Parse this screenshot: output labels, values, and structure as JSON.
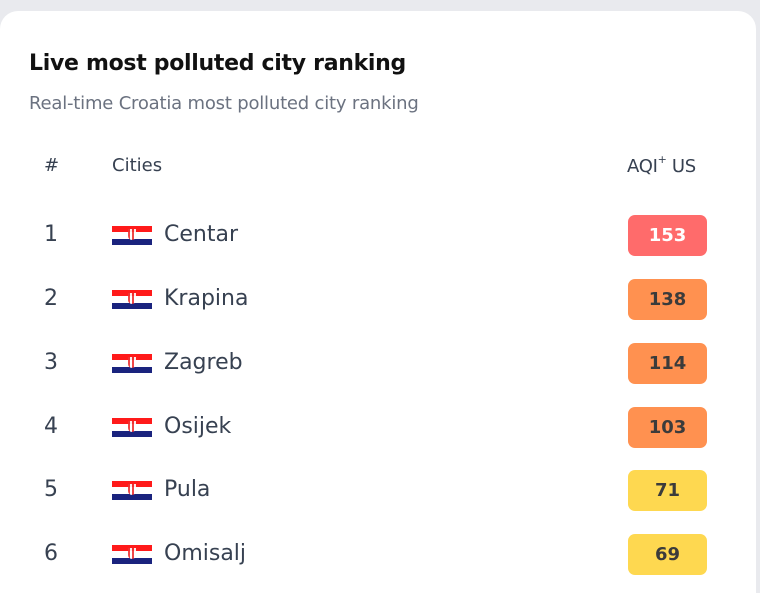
{
  "card": {
    "title": "Live most polluted city ranking",
    "subtitle": "Real-time Croatia most polluted city ranking"
  },
  "table": {
    "headers": {
      "rank": "#",
      "city": "Cities",
      "aqi": "AQI",
      "aqi_sup": "+",
      "aqi_suffix": " US"
    },
    "rows": [
      {
        "rank": "1",
        "flag": "croatia-flag-icon",
        "city": "Centar",
        "aqi": "153",
        "color": "#ff6b6b",
        "text_color": "#ffffff"
      },
      {
        "rank": "2",
        "flag": "croatia-flag-icon",
        "city": "Krapina",
        "aqi": "138",
        "color": "#ff9150",
        "text_color": "#3b3b3b"
      },
      {
        "rank": "3",
        "flag": "croatia-flag-icon",
        "city": "Zagreb",
        "aqi": "114",
        "color": "#ff9150",
        "text_color": "#3b3b3b"
      },
      {
        "rank": "4",
        "flag": "croatia-flag-icon",
        "city": "Osijek",
        "aqi": "103",
        "color": "#ff9150",
        "text_color": "#3b3b3b"
      },
      {
        "rank": "5",
        "flag": "croatia-flag-icon",
        "city": "Pula",
        "aqi": "71",
        "color": "#fed850",
        "text_color": "#3b3b3b"
      },
      {
        "rank": "6",
        "flag": "croatia-flag-icon",
        "city": "Omisalj",
        "aqi": "69",
        "color": "#fed850",
        "text_color": "#3b3b3b"
      }
    ]
  }
}
